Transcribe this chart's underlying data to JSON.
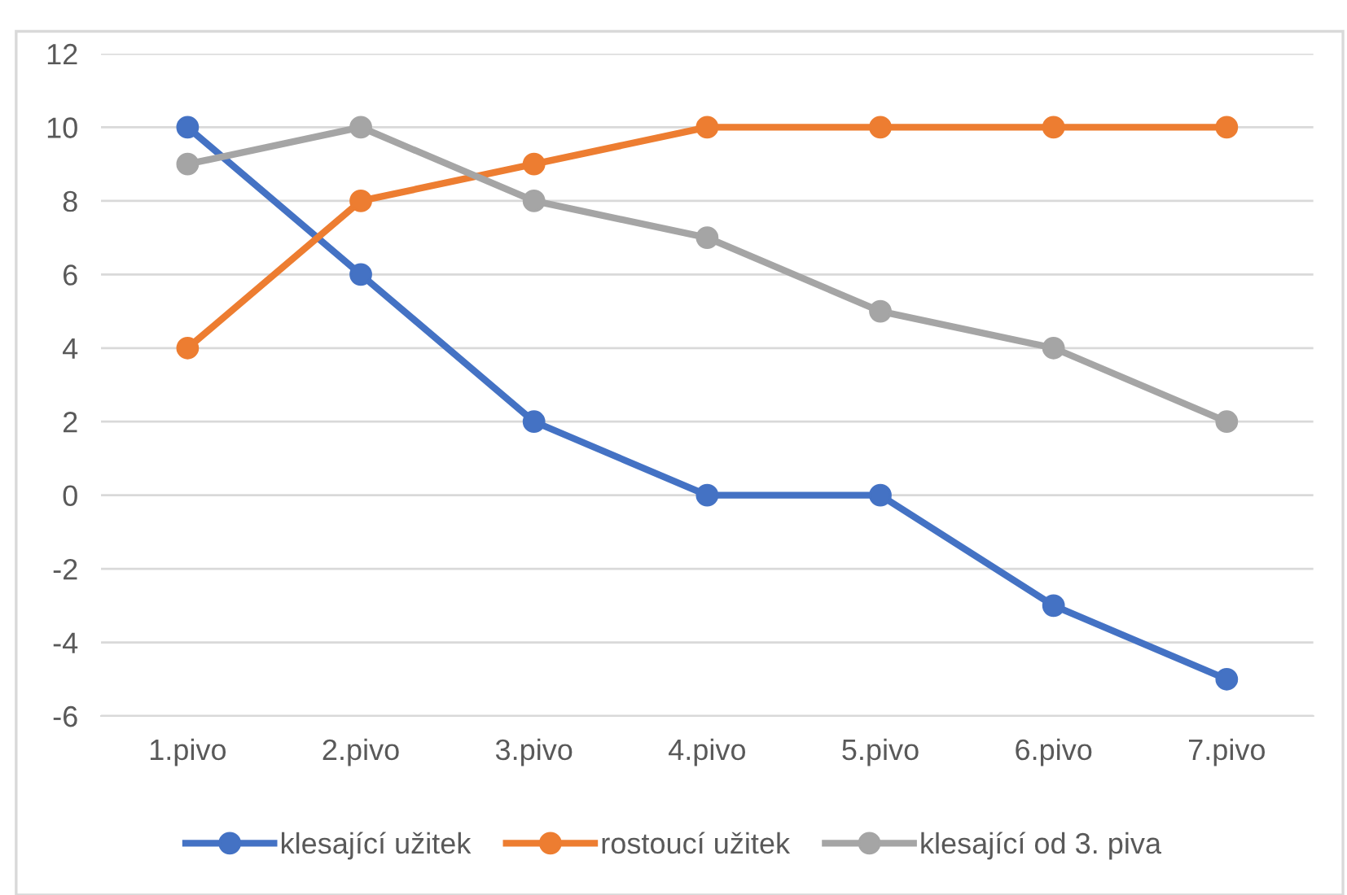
{
  "chart_data": {
    "type": "line",
    "categories": [
      "1.pivo",
      "2.pivo",
      "3.pivo",
      "4.pivo",
      "5.pivo",
      "6.pivo",
      "7.pivo"
    ],
    "series": [
      {
        "name": "klesající užitek",
        "color": "#4472c4",
        "values": [
          10,
          6,
          2,
          0,
          0,
          -3,
          -5
        ]
      },
      {
        "name": "rostoucí užitek",
        "color": "#ed7d31",
        "values": [
          4,
          8,
          9,
          10,
          10,
          10,
          10
        ]
      },
      {
        "name": "klesající od 3. piva",
        "color": "#a5a5a5",
        "values": [
          9,
          10,
          8,
          7,
          5,
          4,
          2
        ]
      }
    ],
    "ylim": [
      -6,
      12
    ],
    "yticks": [
      -6,
      -4,
      -2,
      0,
      2,
      4,
      6,
      8,
      10,
      12
    ],
    "grid": "y",
    "legend": "bottom",
    "marker": "circle",
    "line_style": "solid"
  }
}
